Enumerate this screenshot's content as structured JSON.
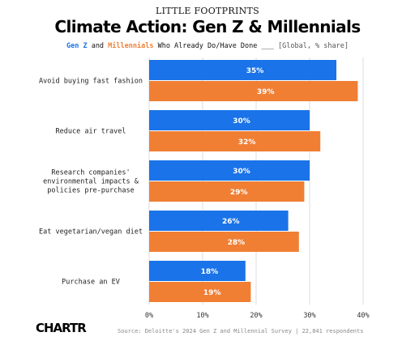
{
  "header": {
    "kicker": "LITTLE FOOTPRINTS",
    "title": "Climate Action: Gen Z & Millennials",
    "subtitle_genz": "Gen Z",
    "subtitle_and": " and ",
    "subtitle_millennials": "Millennials",
    "subtitle_rest": " Who Already Do/Have Done ___ ",
    "subtitle_note": "[Global, % share]"
  },
  "footer": {
    "logo": "CHARTR",
    "source": "Source: Deloitte's 2024 Gen Z and Millennial Survey | 22,841 respondents"
  },
  "colors": {
    "genz": "#1a73e8",
    "millennials": "#f07f34",
    "grid": "#dddddd"
  },
  "chart_data": {
    "type": "bar",
    "orientation": "horizontal",
    "categories": [
      [
        "Avoid buying fast fashion"
      ],
      [
        "Reduce air travel"
      ],
      [
        "Research companies'",
        "environmental impacts &",
        "policies pre-purchase"
      ],
      [
        "Eat vegetarian/vegan diet"
      ],
      [
        "Purchase an EV"
      ]
    ],
    "series": [
      {
        "name": "Gen Z",
        "values": [
          35,
          30,
          30,
          26,
          18
        ]
      },
      {
        "name": "Millennials",
        "values": [
          39,
          32,
          29,
          28,
          19
        ]
      }
    ],
    "value_labels": [
      [
        "35%",
        "30%",
        "30%",
        "26%",
        "18%"
      ],
      [
        "39%",
        "32%",
        "29%",
        "28%",
        "19%"
      ]
    ],
    "xlim": [
      0,
      40
    ],
    "xticks": [
      0,
      10,
      20,
      30,
      40
    ],
    "xtick_labels": [
      "0%",
      "10%",
      "20%",
      "30%",
      "40%"
    ],
    "grid": true
  }
}
